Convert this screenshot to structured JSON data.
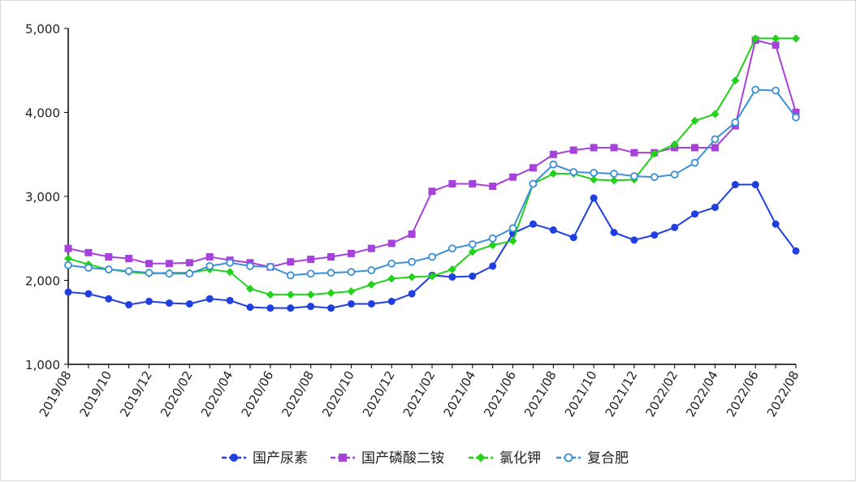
{
  "chart_data": {
    "type": "line",
    "y_axis": {
      "ticks": [
        "1,000",
        "2,000",
        "3,000",
        "4,000",
        "5,000"
      ],
      "ylim": [
        1000,
        5000
      ]
    },
    "x": [
      "2019/08",
      "2019/09",
      "2019/10",
      "2019/11",
      "2019/12",
      "2020/01",
      "2020/02",
      "2020/03",
      "2020/04",
      "2020/05",
      "2020/06",
      "2020/07",
      "2020/08",
      "2020/09",
      "2020/10",
      "2020/11",
      "2020/12",
      "2021/01",
      "2021/02",
      "2021/03",
      "2021/04",
      "2021/05",
      "2021/06",
      "2021/07",
      "2021/08",
      "2021/09",
      "2021/10",
      "2021/11",
      "2021/12",
      "2022/01",
      "2022/02",
      "2022/03",
      "2022/04",
      "2022/05",
      "2022/06",
      "2022/07",
      "2022/08"
    ],
    "x_tick_labels": [
      "2019/08",
      "2019/10",
      "2019/12",
      "2020/02",
      "2020/04",
      "2020/06",
      "2020/08",
      "2020/10",
      "2020/12",
      "2021/02",
      "2021/04",
      "2021/06",
      "2021/08",
      "2021/10",
      "2021/12",
      "2022/02",
      "2022/04",
      "2022/06",
      "2022/08"
    ],
    "grid": false,
    "legend_position": "bottom",
    "series": [
      {
        "name": "国产尿素",
        "color": "#1f3fe0",
        "marker": "circle-filled",
        "values": [
          1860,
          1840,
          1780,
          1710,
          1750,
          1730,
          1720,
          1780,
          1760,
          1680,
          1670,
          1670,
          1690,
          1670,
          1720,
          1720,
          1750,
          1840,
          2060,
          2040,
          2050,
          2170,
          2560,
          2670,
          2600,
          2510,
          2980,
          2570,
          2480,
          2540,
          2630,
          2790,
          2870,
          3140,
          3140,
          2670,
          2350
        ]
      },
      {
        "name": "国产磷酸二铵",
        "color": "#a642d9",
        "marker": "square",
        "values": [
          2380,
          2330,
          2280,
          2260,
          2200,
          2200,
          2210,
          2280,
          2240,
          2210,
          2160,
          2220,
          2250,
          2280,
          2320,
          2380,
          2440,
          2550,
          3060,
          3150,
          3150,
          3120,
          3230,
          3340,
          3500,
          3550,
          3580,
          3580,
          3520,
          3520,
          3580,
          3580,
          3580,
          3840,
          4860,
          4800,
          4000
        ]
      },
      {
        "name": "氯化钾",
        "color": "#22d11a",
        "marker": "diamond",
        "values": [
          2260,
          2190,
          2130,
          2100,
          2080,
          2090,
          2090,
          2130,
          2100,
          1900,
          1830,
          1830,
          1830,
          1850,
          1870,
          1950,
          2020,
          2040,
          2050,
          2130,
          2340,
          2420,
          2470,
          3150,
          3270,
          3270,
          3200,
          3190,
          3200,
          3510,
          3620,
          3900,
          3980,
          4380,
          4880,
          4880,
          4880
        ]
      },
      {
        "name": "复合肥",
        "color": "#3c8fd6",
        "marker": "circle-open",
        "values": [
          2180,
          2150,
          2130,
          2110,
          2090,
          2080,
          2080,
          2170,
          2210,
          2170,
          2160,
          2060,
          2080,
          2090,
          2100,
          2120,
          2200,
          2220,
          2280,
          2380,
          2430,
          2500,
          2620,
          3150,
          3380,
          3290,
          3280,
          3270,
          3240,
          3230,
          3260,
          3400,
          3680,
          3880,
          4270,
          4260,
          3940
        ]
      }
    ]
  }
}
